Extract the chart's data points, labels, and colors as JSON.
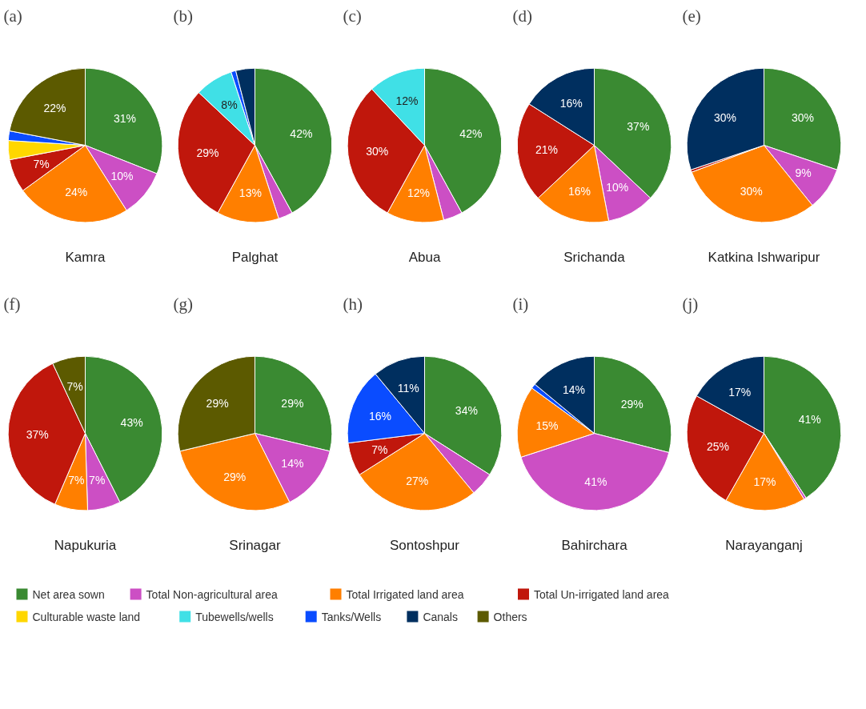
{
  "chart_data": [
    {
      "type": "pie",
      "title": "(a)",
      "xlabel": "Kamra",
      "legend": "bottom",
      "categories": [
        "Net area sown",
        "Total Non-agricultural area",
        "Total Irrigated land area",
        "Total Un-irrigated land area",
        "Culturable waste land",
        "Tubewells/wells",
        "Tanks/Wells",
        "Canals",
        "Others"
      ],
      "colors": [
        "#3a8a32",
        "#cc4fc4",
        "#ff7f00",
        "#c0170c",
        "#ffd700",
        "#40e0e6",
        "#0a4cff",
        "#002f5f",
        "#5c5a00"
      ],
      "values": [
        31,
        10,
        24,
        7,
        4,
        null,
        2,
        null,
        22
      ],
      "value_labels": [
        "31%",
        "10%",
        "24%",
        "7%",
        null,
        null,
        null,
        null,
        "22%"
      ]
    },
    {
      "type": "pie",
      "title": "(b)",
      "xlabel": "Palghat",
      "categories": [
        null,
        null,
        null,
        null,
        null,
        null,
        null,
        null,
        null
      ],
      "colors": [
        "#3a8a32",
        "#cc4fc4",
        "#ff7f00",
        "#c0170c",
        "#ffd700",
        "#40e0e6",
        "#0a4cff",
        "#002f5f",
        "#5c5a00"
      ],
      "values": [
        42,
        3,
        13,
        29,
        null,
        8,
        1,
        4,
        null
      ],
      "value_labels": [
        "42%",
        null,
        "13%",
        "29%",
        null,
        "8%",
        null,
        null,
        null
      ]
    },
    {
      "type": "pie",
      "title": "(c)",
      "xlabel": "Abua",
      "categories": [
        null,
        null,
        null,
        null,
        null,
        null,
        null,
        null,
        null
      ],
      "colors": [
        "#3a8a32",
        "#cc4fc4",
        "#ff7f00",
        "#c0170c",
        "#ffd700",
        "#40e0e6",
        "#0a4cff",
        "#002f5f",
        "#5c5a00"
      ],
      "values": [
        42,
        4,
        12,
        30,
        null,
        12,
        null,
        null,
        null
      ],
      "value_labels": [
        "42%",
        null,
        "12%",
        "30%",
        null,
        "12%",
        null,
        null,
        null
      ]
    },
    {
      "type": "pie",
      "title": "(d)",
      "xlabel": "Srichanda",
      "categories": [
        null,
        null,
        null,
        null,
        null,
        null,
        null,
        null,
        null
      ],
      "colors": [
        "#3a8a32",
        "#cc4fc4",
        "#ff7f00",
        "#c0170c",
        "#ffd700",
        "#40e0e6",
        "#0a4cff",
        "#002f5f",
        "#5c5a00"
      ],
      "values": [
        37,
        10,
        16,
        21,
        null,
        null,
        null,
        16,
        null
      ],
      "value_labels": [
        "37%",
        "10%",
        "16%",
        "21%",
        null,
        null,
        null,
        "16%",
        null
      ]
    },
    {
      "type": "pie",
      "title": "(e)",
      "xlabel": "Katkina Ishwaripur",
      "categories": [
        null,
        null,
        null,
        null,
        null,
        null,
        null,
        null,
        null
      ],
      "colors": [
        "#3a8a32",
        "#cc4fc4",
        "#ff7f00",
        "#c0170c",
        "#ffd700",
        "#40e0e6",
        "#0a4cff",
        "#002f5f",
        "#5c5a00"
      ],
      "values": [
        30,
        9,
        30,
        0.5,
        null,
        null,
        null,
        30,
        null
      ],
      "value_labels": [
        "30%",
        "9%",
        "30%",
        null,
        null,
        null,
        null,
        "30%",
        null
      ]
    },
    {
      "type": "pie",
      "title": "(f)",
      "xlabel": "Napukuria",
      "categories": [
        null,
        null,
        null,
        null,
        null,
        null,
        null,
        null,
        null
      ],
      "colors": [
        "#3a8a32",
        "#cc4fc4",
        "#ff7f00",
        "#c0170c",
        "#ffd700",
        "#40e0e6",
        "#0a4cff",
        "#002f5f",
        "#5c5a00"
      ],
      "values": [
        43,
        7,
        7,
        37,
        null,
        null,
        null,
        null,
        7
      ],
      "value_labels": [
        "43%",
        "7%",
        "7%",
        "37%",
        null,
        null,
        null,
        null,
        "7%"
      ]
    },
    {
      "type": "pie",
      "title": "(g)",
      "xlabel": "Srinagar",
      "categories": [
        null,
        null,
        null,
        null,
        null,
        null,
        null,
        null,
        null
      ],
      "colors": [
        "#3a8a32",
        "#cc4fc4",
        "#ff7f00",
        "#c0170c",
        "#ffd700",
        "#40e0e6",
        "#0a4cff",
        "#002f5f",
        "#5c5a00"
      ],
      "values": [
        29,
        14,
        29,
        null,
        null,
        null,
        null,
        null,
        29
      ],
      "value_labels": [
        "29%",
        "14%",
        "29%",
        null,
        null,
        null,
        null,
        null,
        "29%"
      ]
    },
    {
      "type": "pie",
      "title": "(h)",
      "xlabel": "Sontoshpur",
      "categories": [
        null,
        null,
        null,
        null,
        null,
        null,
        null,
        null,
        null
      ],
      "colors": [
        "#3a8a32",
        "#cc4fc4",
        "#ff7f00",
        "#c0170c",
        "#ffd700",
        "#40e0e6",
        "#0a4cff",
        "#002f5f",
        "#5c5a00"
      ],
      "values": [
        34,
        5,
        27,
        7,
        null,
        null,
        16,
        11,
        null
      ],
      "value_labels": [
        "34%",
        null,
        "27%",
        "7%",
        null,
        null,
        "16%",
        "11%",
        null
      ]
    },
    {
      "type": "pie",
      "title": "(i)",
      "xlabel": "Bahirchara",
      "categories": [
        null,
        null,
        null,
        null,
        null,
        null,
        null,
        null,
        null
      ],
      "colors": [
        "#3a8a32",
        "#cc4fc4",
        "#ff7f00",
        "#c0170c",
        "#ffd700",
        "#40e0e6",
        "#0a4cff",
        "#002f5f",
        "#5c5a00"
      ],
      "values": [
        29,
        41,
        15,
        null,
        null,
        null,
        1,
        14,
        null
      ],
      "value_labels": [
        "29%",
        "41%",
        "15%",
        null,
        null,
        null,
        null,
        "14%",
        null
      ]
    },
    {
      "type": "pie",
      "title": "(j)",
      "xlabel": "Narayanganj",
      "categories": [
        null,
        null,
        null,
        null,
        null,
        null,
        null,
        null,
        null
      ],
      "colors": [
        "#3a8a32",
        "#cc4fc4",
        "#ff7f00",
        "#c0170c",
        "#ffd700",
        "#40e0e6",
        "#0a4cff",
        "#002f5f",
        "#5c5a00"
      ],
      "values": [
        41,
        0.5,
        17,
        25,
        null,
        null,
        null,
        17,
        null
      ],
      "value_labels": [
        "41%",
        null,
        "17%",
        "25%",
        null,
        null,
        null,
        "17%",
        null
      ]
    }
  ]
}
